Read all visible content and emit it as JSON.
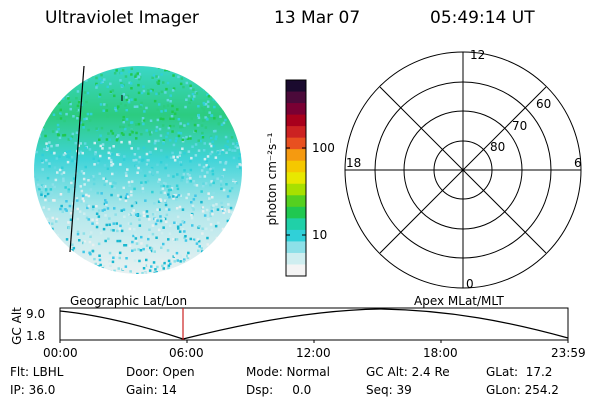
{
  "header": {
    "title": "Ultraviolet Imager",
    "date": "13 Mar 07",
    "time": "05:49:14 UT"
  },
  "colorbar": {
    "unit_label": "photon cm⁻²s⁻¹",
    "ticks": [
      "100",
      "10"
    ],
    "colors": [
      "#1a0a2e",
      "#4b0a3a",
      "#7a0033",
      "#a8001c",
      "#cc2222",
      "#e85020",
      "#f59a10",
      "#f5c800",
      "#e8e800",
      "#a8e000",
      "#55d020",
      "#20c850",
      "#20d0a8",
      "#30d0d8",
      "#8de0e8",
      "#cfeef0",
      "#f4f4f4"
    ]
  },
  "polar": {
    "labels_top": "12",
    "labels_left": "18",
    "labels_right": "6",
    "labels_bottom": "0",
    "rings": [
      "60",
      "70",
      "80"
    ]
  },
  "timeline": {
    "left_caption": "Geographic Lat/Lon",
    "right_caption": "Apex MLat/MLT",
    "axis_title": "GC Alt",
    "y_top": "9.0",
    "y_bottom": "1.8",
    "x_ticks": [
      "00:00",
      "06:00",
      "12:00",
      "18:00",
      "23:59"
    ],
    "marker_color": "#cc2222"
  },
  "info": {
    "flt": "Flt: LBHL",
    "ip": "IP: 36.0",
    "door": "Door: Open",
    "gain": "Gain: 14",
    "mode": "Mode: Normal",
    "dsp": "Dsp:     0.0",
    "gcalt": "GC Alt: 2.4 Re",
    "seq": "Seq: 39",
    "glat": "GLat:  17.2",
    "glon": "GLon: 254.2"
  }
}
